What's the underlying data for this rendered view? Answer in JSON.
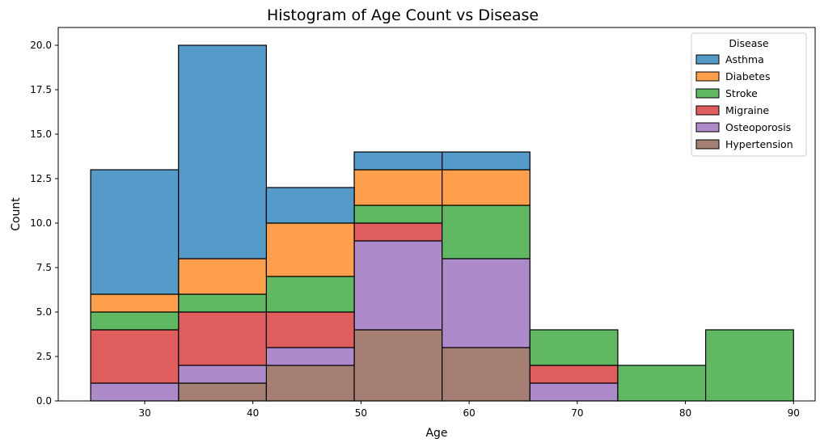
{
  "chart_data": {
    "type": "bar",
    "subtype": "stacked-histogram",
    "title": "Histogram of Age Count vs Disease",
    "xlabel": "Age",
    "ylabel": "Count",
    "xlim": [
      22,
      92
    ],
    "ylim": [
      0,
      21
    ],
    "x_ticks": [
      30,
      40,
      50,
      60,
      70,
      80,
      90
    ],
    "y_ticks": [
      0.0,
      2.5,
      5.0,
      7.5,
      10.0,
      12.5,
      15.0,
      17.5,
      20.0
    ],
    "y_tick_labels": [
      "0.0",
      "2.5",
      "5.0",
      "7.5",
      "10.0",
      "12.5",
      "15.0",
      "17.5",
      "20.0"
    ],
    "bin_edges": [
      25,
      33.125,
      41.25,
      49.375,
      57.5,
      65.625,
      73.75,
      81.875,
      90
    ],
    "legend_title": "Disease",
    "legend_position": "top-right",
    "grid": false,
    "series": [
      {
        "name": "Hypertension",
        "color": "#a57e74",
        "values": [
          0,
          1,
          2,
          4,
          3,
          0,
          0,
          0
        ]
      },
      {
        "name": "Osteoporosis",
        "color": "#ad8bcb",
        "values": [
          1,
          1,
          1,
          5,
          5,
          1,
          0,
          0
        ]
      },
      {
        "name": "Migraine",
        "color": "#df5d5d",
        "values": [
          3,
          3,
          2,
          1,
          0,
          1,
          0,
          0
        ]
      },
      {
        "name": "Stroke",
        "color": "#61b862",
        "values": [
          1,
          1,
          2,
          1,
          3,
          2,
          2,
          4
        ]
      },
      {
        "name": "Diabetes",
        "color": "#fe9f4c",
        "values": [
          1,
          2,
          3,
          2,
          2,
          0,
          0,
          0
        ]
      },
      {
        "name": "Asthma",
        "color": "#559bc9",
        "values": [
          7,
          12,
          2,
          1,
          1,
          0,
          0,
          0
        ]
      }
    ],
    "legend_order": [
      "Asthma",
      "Diabetes",
      "Stroke",
      "Migraine",
      "Osteoporosis",
      "Hypertension"
    ]
  }
}
